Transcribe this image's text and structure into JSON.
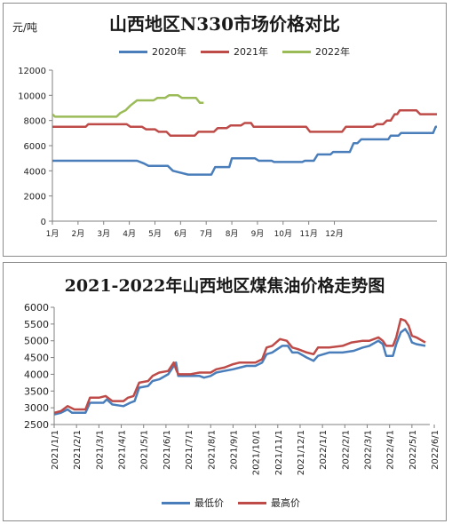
{
  "chart_data": [
    {
      "type": "line",
      "title": "山西地区N330市场价格对比",
      "ylabel": "元/吨",
      "ylim": [
        0,
        12000
      ],
      "yticks": [
        "0",
        "2000",
        "4000",
        "6000",
        "8000",
        "10000",
        "12000"
      ],
      "categories": [
        "1月",
        "2月",
        "3月",
        "4月",
        "5月",
        "6月",
        "7月",
        "8月",
        "9月",
        "10月",
        "11月",
        "12月"
      ],
      "legend_position": "top",
      "grid": false,
      "series": [
        {
          "name": "2020年",
          "color": "#4a7ebb",
          "points": [
            [
              0,
              4800
            ],
            [
              3.3,
              4800
            ],
            [
              3.55,
              4600
            ],
            [
              3.75,
              4400
            ],
            [
              4.5,
              4400
            ],
            [
              4.7,
              4000
            ],
            [
              5.3,
              3700
            ],
            [
              6.2,
              3700
            ],
            [
              6.35,
              4300
            ],
            [
              6.9,
              4300
            ],
            [
              7.0,
              5000
            ],
            [
              7.9,
              5000
            ],
            [
              8.05,
              4800
            ],
            [
              8.55,
              4800
            ],
            [
              8.65,
              4700
            ],
            [
              9.75,
              4700
            ],
            [
              9.85,
              4800
            ],
            [
              10.2,
              4800
            ],
            [
              10.35,
              5300
            ],
            [
              10.85,
              5300
            ],
            [
              10.95,
              5500
            ],
            [
              11.6,
              5500
            ],
            [
              11.75,
              6200
            ],
            [
              11.9,
              6200
            ],
            [
              12.05,
              6500
            ],
            [
              13.1,
              6500
            ],
            [
              13.2,
              6800
            ],
            [
              13.5,
              6800
            ],
            [
              13.6,
              7000
            ],
            [
              14.85,
              7000
            ],
            [
              14.95,
              7500
            ],
            [
              15.0,
              7500
            ]
          ]
        },
        {
          "name": "2021年",
          "color": "#be4b48",
          "points": [
            [
              0,
              7500
            ],
            [
              1.3,
              7500
            ],
            [
              1.4,
              7700
            ],
            [
              2.9,
              7700
            ],
            [
              3.05,
              7500
            ],
            [
              3.5,
              7500
            ],
            [
              3.65,
              7300
            ],
            [
              4.0,
              7300
            ],
            [
              4.15,
              7100
            ],
            [
              4.45,
              7100
            ],
            [
              4.6,
              6800
            ],
            [
              5.55,
              6800
            ],
            [
              5.7,
              7100
            ],
            [
              6.3,
              7100
            ],
            [
              6.45,
              7400
            ],
            [
              6.8,
              7400
            ],
            [
              6.95,
              7600
            ],
            [
              7.35,
              7600
            ],
            [
              7.5,
              7800
            ],
            [
              7.75,
              7800
            ],
            [
              7.85,
              7500
            ],
            [
              9.9,
              7500
            ],
            [
              10.05,
              7100
            ],
            [
              11.3,
              7100
            ],
            [
              11.45,
              7500
            ],
            [
              12.5,
              7500
            ],
            [
              12.65,
              7700
            ],
            [
              12.9,
              7700
            ],
            [
              13.05,
              8000
            ],
            [
              13.2,
              8000
            ],
            [
              13.35,
              8500
            ],
            [
              13.45,
              8500
            ],
            [
              13.55,
              8800
            ],
            [
              14.2,
              8800
            ],
            [
              14.35,
              8500
            ],
            [
              15.0,
              8500
            ]
          ]
        },
        {
          "name": "2022年",
          "color": "#9bbb59",
          "points": [
            [
              0,
              8500
            ],
            [
              0.1,
              8300
            ],
            [
              2.5,
              8300
            ],
            [
              2.65,
              8600
            ],
            [
              2.85,
              8800
            ],
            [
              3.05,
              9200
            ],
            [
              3.3,
              9600
            ],
            [
              3.95,
              9600
            ],
            [
              4.1,
              9800
            ],
            [
              4.4,
              9800
            ],
            [
              4.55,
              10000
            ],
            [
              4.9,
              10000
            ],
            [
              5.05,
              9800
            ],
            [
              5.6,
              9800
            ],
            [
              5.75,
              9400
            ],
            [
              5.9,
              9400
            ]
          ]
        }
      ]
    },
    {
      "type": "line",
      "title": "2021-2022年山西地区煤焦油价格走势图",
      "ylim": [
        2500,
        6000
      ],
      "yticks": [
        "2500",
        "3000",
        "3500",
        "4000",
        "4500",
        "5000",
        "5500",
        "6000"
      ],
      "categories": [
        "2021/1/1",
        "2021/2/1",
        "2021/3/1",
        "2021/4/1",
        "2021/5/1",
        "2021/6/1",
        "2021/7/1",
        "2021/8/1",
        "2021/9/1",
        "2021/10/1",
        "2021/11/1",
        "2021/12/1",
        "2022/1/1",
        "2022/2/1",
        "2022/3/1",
        "2022/4/1",
        "2022/5/1",
        "2022/6/1"
      ],
      "legend_position": "bottom",
      "grid": false,
      "series": [
        {
          "name": "最低价",
          "color": "#4a7ebb",
          "points": [
            [
              0,
              2800
            ],
            [
              0.3,
              2850
            ],
            [
              0.6,
              2950
            ],
            [
              0.8,
              2850
            ],
            [
              1.4,
              2850
            ],
            [
              1.6,
              3150
            ],
            [
              2.2,
              3150
            ],
            [
              2.35,
              3250
            ],
            [
              2.6,
              3100
            ],
            [
              3.1,
              3050
            ],
            [
              3.4,
              3150
            ],
            [
              3.6,
              3200
            ],
            [
              3.8,
              3600
            ],
            [
              4.2,
              3650
            ],
            [
              4.4,
              3800
            ],
            [
              4.7,
              3850
            ],
            [
              5.1,
              4000
            ],
            [
              5.3,
              4200
            ],
            [
              5.45,
              4350
            ],
            [
              5.55,
              3950
            ],
            [
              6.1,
              3950
            ],
            [
              6.5,
              3950
            ],
            [
              6.7,
              3900
            ],
            [
              7.0,
              3950
            ],
            [
              7.25,
              4050
            ],
            [
              7.6,
              4100
            ],
            [
              8.0,
              4150
            ],
            [
              8.3,
              4200
            ],
            [
              8.6,
              4250
            ],
            [
              9.0,
              4250
            ],
            [
              9.3,
              4350
            ],
            [
              9.5,
              4600
            ],
            [
              9.75,
              4650
            ],
            [
              10.2,
              4850
            ],
            [
              10.45,
              4850
            ],
            [
              10.65,
              4650
            ],
            [
              10.9,
              4650
            ],
            [
              11.3,
              4500
            ],
            [
              11.6,
              4400
            ],
            [
              11.8,
              4550
            ],
            [
              12.3,
              4650
            ],
            [
              12.9,
              4650
            ],
            [
              13.4,
              4700
            ],
            [
              13.8,
              4800
            ],
            [
              14.1,
              4850
            ],
            [
              14.5,
              5000
            ],
            [
              14.7,
              4900
            ],
            [
              14.85,
              4550
            ],
            [
              15.15,
              4550
            ],
            [
              15.3,
              4900
            ],
            [
              15.5,
              5250
            ],
            [
              15.7,
              5350
            ],
            [
              15.85,
              5200
            ],
            [
              16.0,
              4950
            ],
            [
              16.2,
              4900
            ],
            [
              16.6,
              4850
            ]
          ]
        },
        {
          "name": "最高价",
          "color": "#be4b48",
          "points": [
            [
              0,
              2850
            ],
            [
              0.3,
              2900
            ],
            [
              0.6,
              3050
            ],
            [
              0.9,
              2950
            ],
            [
              1.4,
              2950
            ],
            [
              1.6,
              3300
            ],
            [
              2.0,
              3300
            ],
            [
              2.3,
              3350
            ],
            [
              2.6,
              3200
            ],
            [
              3.1,
              3200
            ],
            [
              3.3,
              3300
            ],
            [
              3.55,
              3350
            ],
            [
              3.8,
              3750
            ],
            [
              4.2,
              3800
            ],
            [
              4.4,
              3950
            ],
            [
              4.7,
              4050
            ],
            [
              5.1,
              4100
            ],
            [
              5.35,
              4350
            ],
            [
              5.45,
              4150
            ],
            [
              5.55,
              4000
            ],
            [
              6.1,
              4000
            ],
            [
              6.5,
              4050
            ],
            [
              6.7,
              4050
            ],
            [
              7.0,
              4050
            ],
            [
              7.25,
              4150
            ],
            [
              7.6,
              4200
            ],
            [
              8.0,
              4300
            ],
            [
              8.3,
              4350
            ],
            [
              8.6,
              4350
            ],
            [
              9.0,
              4350
            ],
            [
              9.3,
              4450
            ],
            [
              9.5,
              4800
            ],
            [
              9.75,
              4850
            ],
            [
              10.1,
              5050
            ],
            [
              10.4,
              5000
            ],
            [
              10.65,
              4800
            ],
            [
              10.9,
              4750
            ],
            [
              11.3,
              4650
            ],
            [
              11.6,
              4600
            ],
            [
              11.8,
              4800
            ],
            [
              12.3,
              4800
            ],
            [
              12.9,
              4850
            ],
            [
              13.3,
              4950
            ],
            [
              13.8,
              5000
            ],
            [
              14.1,
              5000
            ],
            [
              14.5,
              5100
            ],
            [
              14.7,
              5000
            ],
            [
              14.85,
              4850
            ],
            [
              15.15,
              4850
            ],
            [
              15.3,
              5100
            ],
            [
              15.5,
              5650
            ],
            [
              15.7,
              5600
            ],
            [
              15.85,
              5450
            ],
            [
              16.0,
              5150
            ],
            [
              16.2,
              5100
            ],
            [
              16.6,
              4950
            ]
          ]
        }
      ]
    }
  ]
}
